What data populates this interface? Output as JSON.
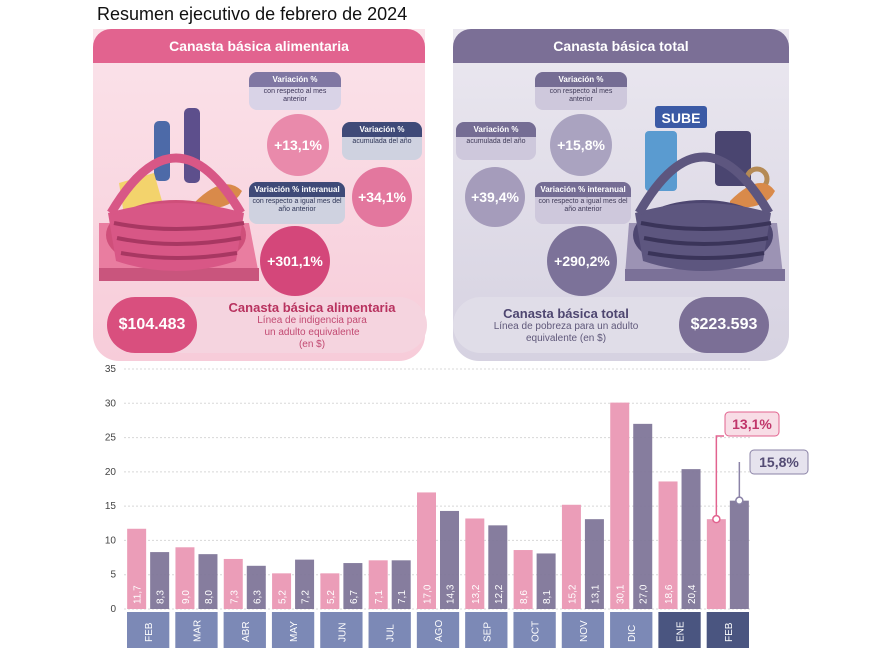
{
  "title": "Resumen ejecutivo de febrero de 2024",
  "left_panel": {
    "header": "Canasta básica alimentaria",
    "var_mensual": {
      "title": "Variación %",
      "sub": "con respecto al mes anterior",
      "value": "+13,1%"
    },
    "var_acumulada": {
      "title": "Variación %",
      "sub": "acumulada del año",
      "value": "+34,1%"
    },
    "var_interanual": {
      "title": "Variación % interanual",
      "sub": "con respecto a igual mes del año anterior",
      "value": "+301,1%"
    },
    "price": "$104.483",
    "price_title": "Canasta básica alimentaria",
    "price_sub": "Línea de indigencia para un adulto equivalente (en $)"
  },
  "right_panel": {
    "header": "Canasta básica total",
    "var_mensual": {
      "title": "Variación %",
      "sub": "con respecto al mes anterior",
      "value": "+15,8%"
    },
    "var_acumulada": {
      "title": "Variación %",
      "sub": "acumulada del año",
      "value": "+39,4%"
    },
    "var_interanual": {
      "title": "Variación % interanual",
      "sub": "con respecto a igual mes del año anterior",
      "value": "+290,2%"
    },
    "price": "$223.593",
    "price_title": "Canasta básica total",
    "price_sub": "Línea de pobreza para un adulto equivalente (en $)",
    "basket_tag": "SUBE"
  },
  "colors": {
    "cba": "#eb9db8",
    "cbt": "#7f7699",
    "callout_cba": "#c0356a",
    "callout_cbt": "#544c74"
  },
  "chart_data": {
    "type": "bar",
    "categories": [
      "FEB",
      "MAR",
      "ABR",
      "MAY",
      "JUN",
      "JUL",
      "AGO",
      "SEP",
      "OCT",
      "NOV",
      "DIC",
      "ENE",
      "FEB"
    ],
    "series": [
      {
        "values": [
          11.7,
          9.0,
          7.3,
          5.2,
          5.2,
          7.1,
          17.0,
          13.2,
          8.6,
          15.2,
          30.1,
          18.6,
          13.1
        ],
        "labels": [
          "11,7",
          "9,0",
          "7,3",
          "5,2",
          "5,2",
          "7,1",
          "17,0",
          "13,2",
          "8,6",
          "15,2",
          "30,1",
          "18,6",
          ""
        ]
      },
      {
        "values": [
          8.3,
          8.0,
          6.3,
          7.2,
          6.7,
          7.1,
          14.3,
          12.2,
          8.1,
          13.1,
          27.0,
          20.4,
          15.8
        ],
        "labels": [
          "8,3",
          "8,0",
          "6,3",
          "7,2",
          "6,7",
          "7,1",
          "14,3",
          "12,2",
          "8,1",
          "13,1",
          "27,0",
          "20,4",
          ""
        ]
      }
    ],
    "yticks": [
      0,
      5,
      10,
      15,
      20,
      25,
      30,
      35
    ],
    "ylim": [
      0,
      35
    ],
    "callouts": [
      "13,1%",
      "15,8%"
    ],
    "grid": true
  }
}
